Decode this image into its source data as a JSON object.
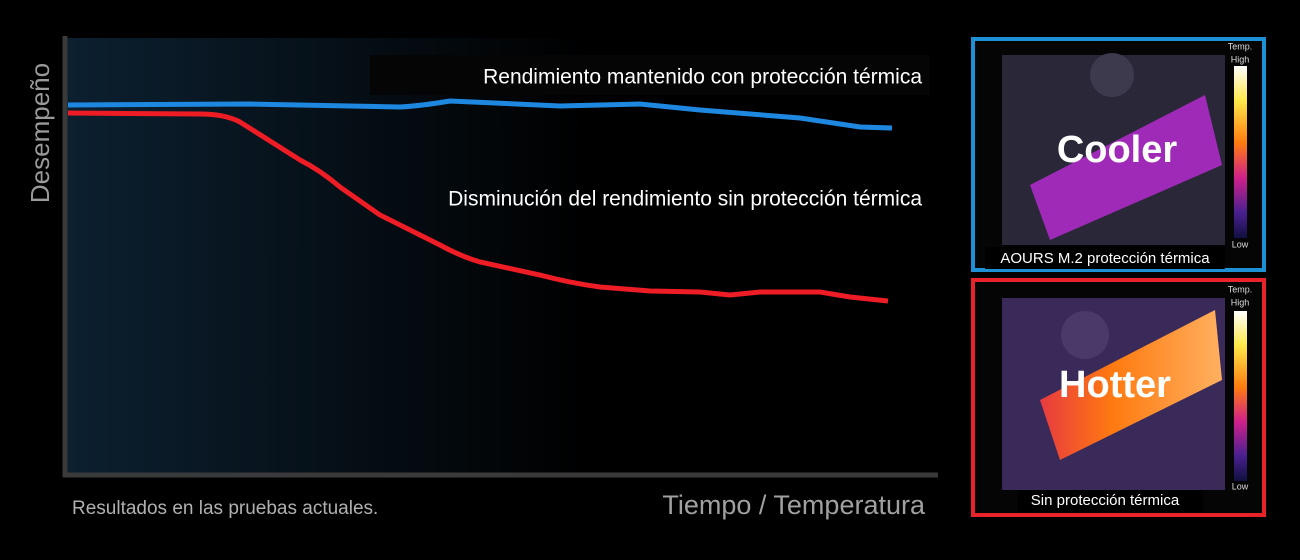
{
  "chart": {
    "y_label": "Desempeño",
    "x_label": "Tiempo / Temperatura",
    "note": "Resultados en las pruebas actuales.",
    "annotations": [
      "Rendimiento mantenido con protección térmica",
      "Disminución del rendimiento sin protección térmica"
    ]
  },
  "panels": [
    {
      "heading": "Cooler",
      "caption": "AOURS M.2 protección térmica",
      "scale": {
        "title": "Temp.",
        "high": "High",
        "low": "Low"
      }
    },
    {
      "heading": "Hotter",
      "caption": "Sin protección térmica",
      "scale": {
        "title": "Temp.",
        "high": "High",
        "low": "Low"
      }
    }
  ]
}
